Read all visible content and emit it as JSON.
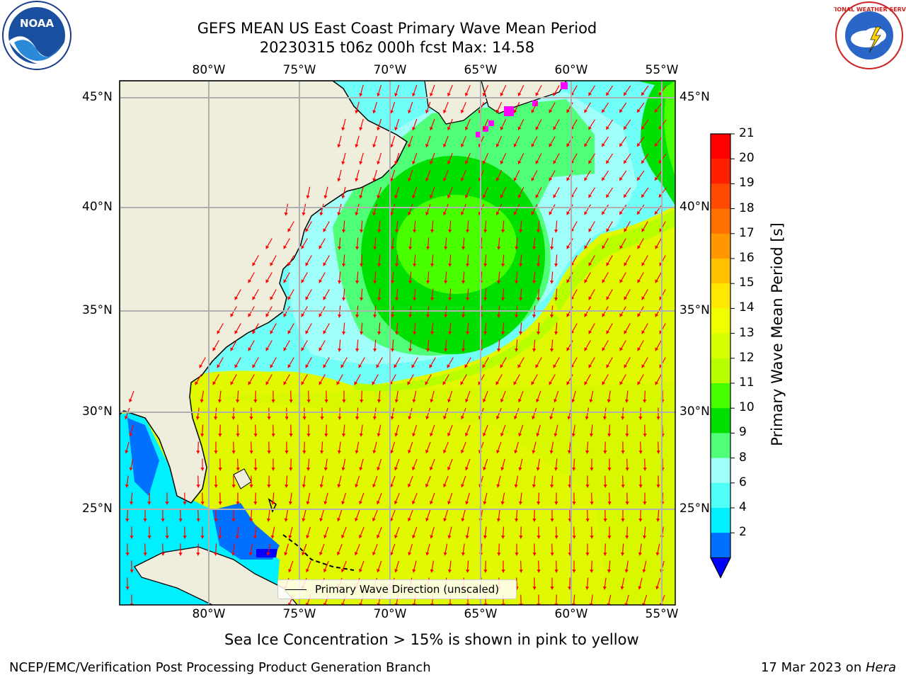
{
  "title": {
    "line1": "GEFS MEAN US East Coast Primary Wave Mean Period",
    "line2": "20230315 t06z 000h fcst   Max: 14.58"
  },
  "map": {
    "lon_labels": [
      "80°W",
      "75°W",
      "70°W",
      "65°W",
      "60°W",
      "55°W"
    ],
    "lat_labels": [
      "45°N",
      "40°N",
      "35°N",
      "30°N",
      "25°N"
    ],
    "legend_label": "Primary Wave Direction (unscaled)",
    "arrow_color": "#ff0000",
    "land_color": "#efeedc"
  },
  "colorbar": {
    "title": "Primary Wave Mean Period [s]",
    "ticks": [
      "21",
      "20",
      "19",
      "18",
      "17",
      "16",
      "15",
      "14",
      "13",
      "12",
      "11",
      "10",
      "9",
      "8",
      "6",
      "4",
      "2"
    ],
    "colors": [
      "#ff0000",
      "#ff2000",
      "#ff4800",
      "#ff7000",
      "#ff9800",
      "#ffc000",
      "#ffe800",
      "#f0ff00",
      "#d8ff00",
      "#b8ff00",
      "#48ff00",
      "#00e000",
      "#50ff78",
      "#a0fff8",
      "#50fff8",
      "#00f0ff",
      "#0070ff"
    ],
    "extend_color": "#0000ff"
  },
  "caption": "Sea Ice Concentration > 15% is shown in pink to yellow",
  "footer": {
    "left": "NCEP/EMC/Verification Post Processing Product Generation Branch",
    "right_date": "17 Mar 2023 on ",
    "right_host": "Hera"
  },
  "logos": {
    "left_text": "NOAA",
    "right_text": "NATIONAL WEATHER SERVICE"
  }
}
